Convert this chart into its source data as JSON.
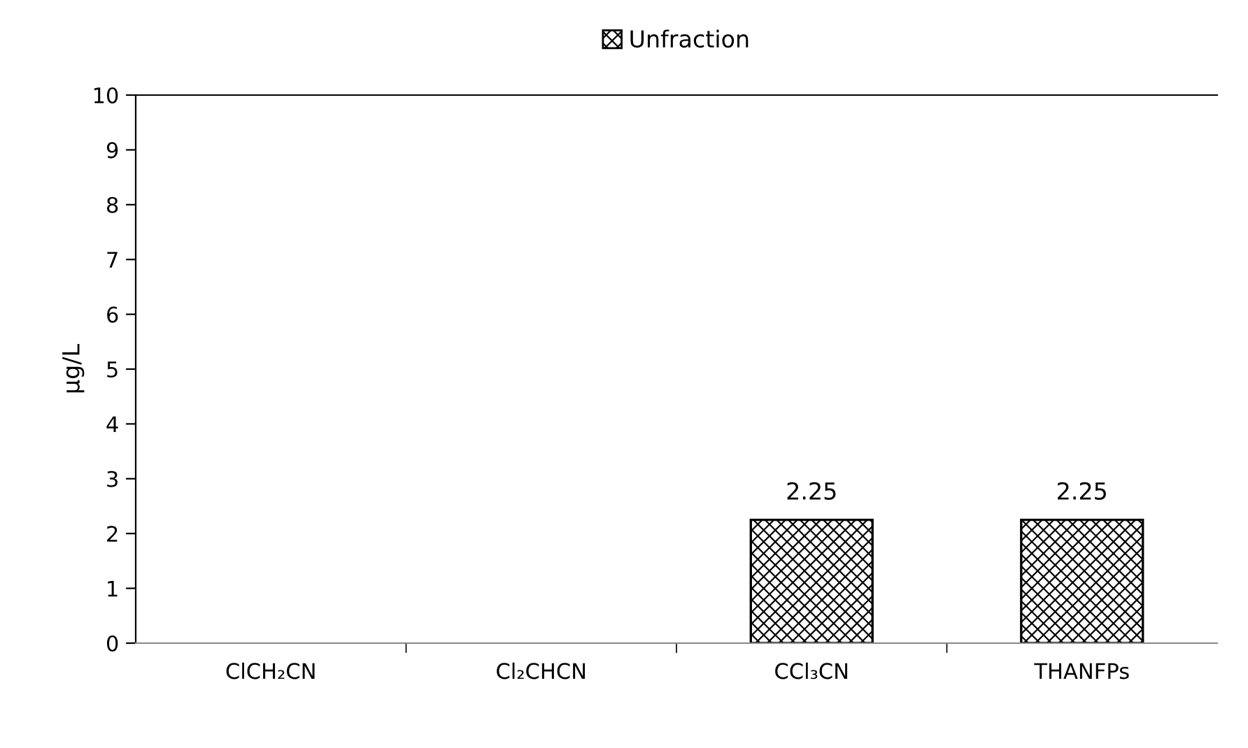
{
  "chart_data": {
    "type": "bar",
    "ylabel": "µg/L",
    "categories": [
      "ClCH₂CN",
      "Cl₂CHCN",
      "CCl₃CN",
      "THANFPs"
    ],
    "series": [
      {
        "name": "Unfraction",
        "color": "#000000",
        "values": [
          null,
          null,
          2.25,
          2.25
        ],
        "value_labels": [
          null,
          null,
          "2.25",
          "2.25"
        ]
      }
    ],
    "ylim": [
      0,
      10
    ],
    "yticks": [
      0,
      1,
      2,
      3,
      4,
      5,
      6,
      7,
      8,
      9,
      10
    ],
    "grid": false,
    "legend": "top"
  }
}
